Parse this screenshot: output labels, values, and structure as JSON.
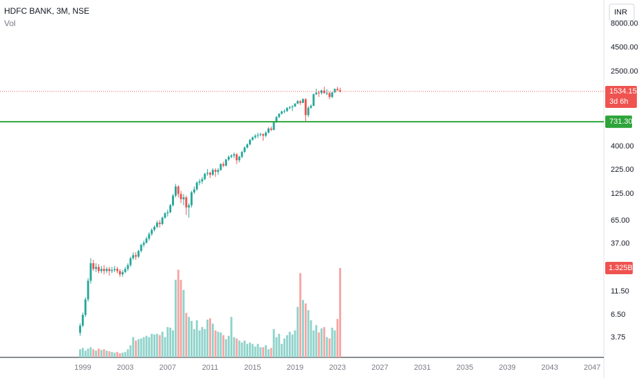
{
  "chart_data": {
    "type": "candlestick",
    "title": "HDFC BANK, 3M, NSE",
    "volume_title": "Vol",
    "currency": "INR",
    "log_scale": true,
    "up_color": "#26a69a",
    "down_color": "#ef5350",
    "volume_up_color": "#8fd3cb",
    "volume_down_color": "#f7a5a3",
    "level_color": "#2ea43a",
    "xlim": [
      1991.2,
      2048.1
    ],
    "xticks": [
      1999,
      2003,
      2007,
      2011,
      2015,
      2019,
      2023,
      2027,
      2031,
      2035,
      2039,
      2043,
      2047
    ],
    "ylim": [
      2.3,
      14350
    ],
    "yticks": [
      {
        "value": 8000,
        "label": "8000.00"
      },
      {
        "value": 4500,
        "label": "4500.00"
      },
      {
        "value": 2500,
        "label": "2500.00"
      },
      {
        "value": 400,
        "label": "400.00"
      },
      {
        "value": 225,
        "label": "225.00"
      },
      {
        "value": 125,
        "label": "125.00"
      },
      {
        "value": 65,
        "label": "65.00"
      },
      {
        "value": 37,
        "label": "37.00"
      },
      {
        "value": 11.5,
        "label": "11.50"
      },
      {
        "value": 6.5,
        "label": "6.50"
      },
      3.75
    ],
    "last_price": 1534.15,
    "countdown": "3d 6h",
    "level": {
      "value": 731.3,
      "label": "731.30"
    },
    "volume_tag": {
      "value": 1.325,
      "label": "1.325B"
    },
    "x": [
      1998.75,
      1999,
      1999.25,
      1999.5,
      1999.75,
      2000,
      2000.25,
      2000.5,
      2000.75,
      2001,
      2001.25,
      2001.5,
      2001.75,
      2002,
      2002.25,
      2002.5,
      2002.75,
      2003,
      2003.25,
      2003.5,
      2003.75,
      2004,
      2004.25,
      2004.5,
      2004.75,
      2005,
      2005.25,
      2005.5,
      2005.75,
      2006,
      2006.25,
      2006.5,
      2006.75,
      2007,
      2007.25,
      2007.5,
      2007.75,
      2008,
      2008.25,
      2008.5,
      2008.75,
      2009,
      2009.25,
      2009.5,
      2009.75,
      2010,
      2010.25,
      2010.5,
      2010.75,
      2011,
      2011.25,
      2011.5,
      2011.75,
      2012,
      2012.25,
      2012.5,
      2012.75,
      2013,
      2013.25,
      2013.5,
      2013.75,
      2014,
      2014.25,
      2014.5,
      2014.75,
      2015,
      2015.25,
      2015.5,
      2015.75,
      2016,
      2016.25,
      2016.5,
      2016.75,
      2017,
      2017.25,
      2017.5,
      2017.75,
      2018,
      2018.25,
      2018.5,
      2018.75,
      2019,
      2019.25,
      2019.5,
      2019.75,
      2020,
      2020.25,
      2020.5,
      2020.75,
      2021,
      2021.25,
      2021.5,
      2021.75,
      2022,
      2022.25,
      2022.5,
      2022.75,
      2023,
      2023.25
    ],
    "ohlc": [
      [
        4.2,
        5.3,
        3.9,
        5
      ],
      [
        5,
        6.9,
        4.8,
        6.5
      ],
      [
        6.5,
        10,
        6.2,
        9.5
      ],
      [
        9.5,
        16,
        9,
        15
      ],
      [
        15,
        26,
        14,
        23
      ],
      [
        23,
        25,
        19,
        20
      ],
      [
        20,
        23,
        18.5,
        21
      ],
      [
        21,
        22.5,
        18,
        19
      ],
      [
        19,
        21.5,
        18,
        20
      ],
      [
        20,
        22,
        17.5,
        19
      ],
      [
        19,
        21,
        18,
        20
      ],
      [
        20,
        21,
        17,
        19
      ],
      [
        19,
        21,
        18,
        19.5
      ],
      [
        19.5,
        21.5,
        18.5,
        20
      ],
      [
        20,
        21,
        18,
        19
      ],
      [
        19,
        20,
        16.5,
        17.5
      ],
      [
        17.5,
        19.5,
        16.5,
        18.5
      ],
      [
        18.5,
        21,
        18,
        20
      ],
      [
        20,
        23,
        19,
        22
      ],
      [
        22,
        27,
        21,
        26
      ],
      [
        26,
        30,
        25,
        28
      ],
      [
        28,
        30,
        25,
        27
      ],
      [
        27,
        32,
        26,
        31
      ],
      [
        31,
        37,
        30,
        36
      ],
      [
        36,
        40,
        34,
        38
      ],
      [
        38,
        44,
        37,
        42
      ],
      [
        42,
        49,
        40,
        47
      ],
      [
        47,
        54,
        45,
        52
      ],
      [
        52,
        58,
        50,
        56
      ],
      [
        56,
        65,
        54,
        62
      ],
      [
        62,
        66,
        55,
        60
      ],
      [
        60,
        72,
        58,
        70
      ],
      [
        70,
        80,
        68,
        78
      ],
      [
        78,
        85,
        72,
        80
      ],
      [
        80,
        98,
        78,
        95
      ],
      [
        95,
        125,
        92,
        120
      ],
      [
        120,
        160,
        115,
        150
      ],
      [
        150,
        155,
        115,
        125
      ],
      [
        125,
        135,
        100,
        110
      ],
      [
        110,
        125,
        95,
        115
      ],
      [
        115,
        120,
        75,
        90
      ],
      [
        90,
        100,
        70,
        95
      ],
      [
        95,
        135,
        90,
        130
      ],
      [
        130,
        150,
        125,
        140
      ],
      [
        140,
        170,
        135,
        165
      ],
      [
        165,
        180,
        155,
        170
      ],
      [
        170,
        190,
        160,
        180
      ],
      [
        180,
        210,
        175,
        205
      ],
      [
        205,
        230,
        195,
        210
      ],
      [
        210,
        215,
        185,
        200
      ],
      [
        200,
        235,
        195,
        225
      ],
      [
        225,
        235,
        190,
        215
      ],
      [
        215,
        235,
        200,
        225
      ],
      [
        225,
        265,
        220,
        260
      ],
      [
        260,
        275,
        240,
        250
      ],
      [
        250,
        295,
        245,
        290
      ],
      [
        290,
        320,
        280,
        310
      ],
      [
        310,
        330,
        300,
        320
      ],
      [
        320,
        345,
        300,
        330
      ],
      [
        330,
        340,
        260,
        285
      ],
      [
        285,
        320,
        270,
        310
      ],
      [
        310,
        360,
        300,
        350
      ],
      [
        350,
        400,
        340,
        390
      ],
      [
        390,
        430,
        380,
        420
      ],
      [
        420,
        480,
        410,
        470
      ],
      [
        470,
        510,
        460,
        500
      ],
      [
        500,
        540,
        480,
        520
      ],
      [
        520,
        560,
        490,
        530
      ],
      [
        530,
        560,
        510,
        540
      ],
      [
        540,
        550,
        460,
        520
      ],
      [
        520,
        580,
        500,
        560
      ],
      [
        560,
        640,
        550,
        620
      ],
      [
        620,
        650,
        580,
        600
      ],
      [
        600,
        730,
        590,
        720
      ],
      [
        720,
        840,
        710,
        820
      ],
      [
        820,
        900,
        800,
        890
      ],
      [
        890,
        960,
        870,
        940
      ],
      [
        940,
        990,
        900,
        950
      ],
      [
        950,
        1050,
        930,
        1020
      ],
      [
        1020,
        1080,
        990,
        1040
      ],
      [
        1040,
        1100,
        950,
        1060
      ],
      [
        1060,
        1150,
        1050,
        1140
      ],
      [
        1140,
        1250,
        1120,
        1210
      ],
      [
        1210,
        1240,
        1100,
        1160
      ],
      [
        1160,
        1300,
        1150,
        1270
      ],
      [
        1270,
        1300,
        740,
        860
      ],
      [
        860,
        1070,
        820,
        1030
      ],
      [
        1030,
        1120,
        1000,
        1080
      ],
      [
        1080,
        1460,
        1070,
        1430
      ],
      [
        1430,
        1640,
        1400,
        1490
      ],
      [
        1490,
        1560,
        1340,
        1480
      ],
      [
        1480,
        1600,
        1420,
        1570
      ],
      [
        1570,
        1720,
        1460,
        1470
      ],
      [
        1470,
        1620,
        1400,
        1475
      ],
      [
        1475,
        1530,
        1270,
        1340
      ],
      [
        1340,
        1510,
        1300,
        1500
      ],
      [
        1500,
        1650,
        1480,
        1630
      ],
      [
        1630,
        1720,
        1560,
        1580
      ],
      [
        1580,
        1680,
        1500,
        1534.15
      ]
    ],
    "volumes": [
      0.12,
      0.14,
      0.1,
      0.13,
      0.15,
      0.12,
      0.1,
      0.13,
      0.11,
      0.12,
      0.1,
      0.09,
      0.08,
      0.07,
      0.08,
      0.06,
      0.07,
      0.08,
      0.12,
      0.18,
      0.3,
      0.25,
      0.27,
      0.28,
      0.3,
      0.32,
      0.3,
      0.35,
      0.34,
      0.35,
      0.33,
      0.38,
      0.3,
      0.45,
      0.44,
      0.4,
      1.15,
      1.3,
      1.15,
      1.0,
      0.66,
      0.6,
      0.54,
      0.42,
      0.55,
      0.4,
      0.45,
      0.42,
      0.56,
      0.58,
      0.5,
      0.4,
      0.38,
      0.37,
      0.33,
      0.27,
      0.32,
      0.6,
      0.3,
      0.28,
      0.25,
      0.22,
      0.25,
      0.2,
      0.22,
      0.2,
      0.16,
      0.2,
      0.15,
      0.15,
      0.18,
      0.12,
      0.14,
      0.42,
      0.3,
      0.35,
      0.2,
      0.28,
      0.33,
      0.38,
      0.34,
      0.4,
      0.75,
      1.25,
      0.85,
      0.8,
      0.7,
      0.55,
      0.4,
      0.48,
      0.37,
      0.43,
      0.45,
      0.3,
      0.28,
      0.44,
      0.4,
      0.57,
      1.325
    ]
  }
}
